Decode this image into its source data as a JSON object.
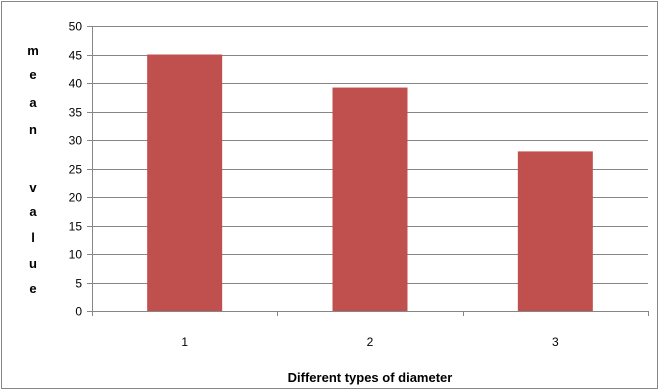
{
  "chart_data": {
    "type": "bar",
    "categories": [
      "1",
      "2",
      "3"
    ],
    "values": [
      45,
      39.2,
      28
    ],
    "ylim": [
      0,
      50
    ],
    "yticks": [
      0,
      5,
      10,
      15,
      20,
      25,
      30,
      35,
      40,
      45,
      50
    ],
    "xlabel": "Different types of diameter",
    "ylabel": "mean value",
    "ylabel_letters": [
      "m",
      "e",
      "a",
      "n",
      "",
      "v",
      "a",
      "l",
      "u",
      "e"
    ],
    "grid": true,
    "legend": "none",
    "colors": {
      "bar": "#C0504D",
      "grid": "#868686",
      "axis": "#868686"
    }
  }
}
